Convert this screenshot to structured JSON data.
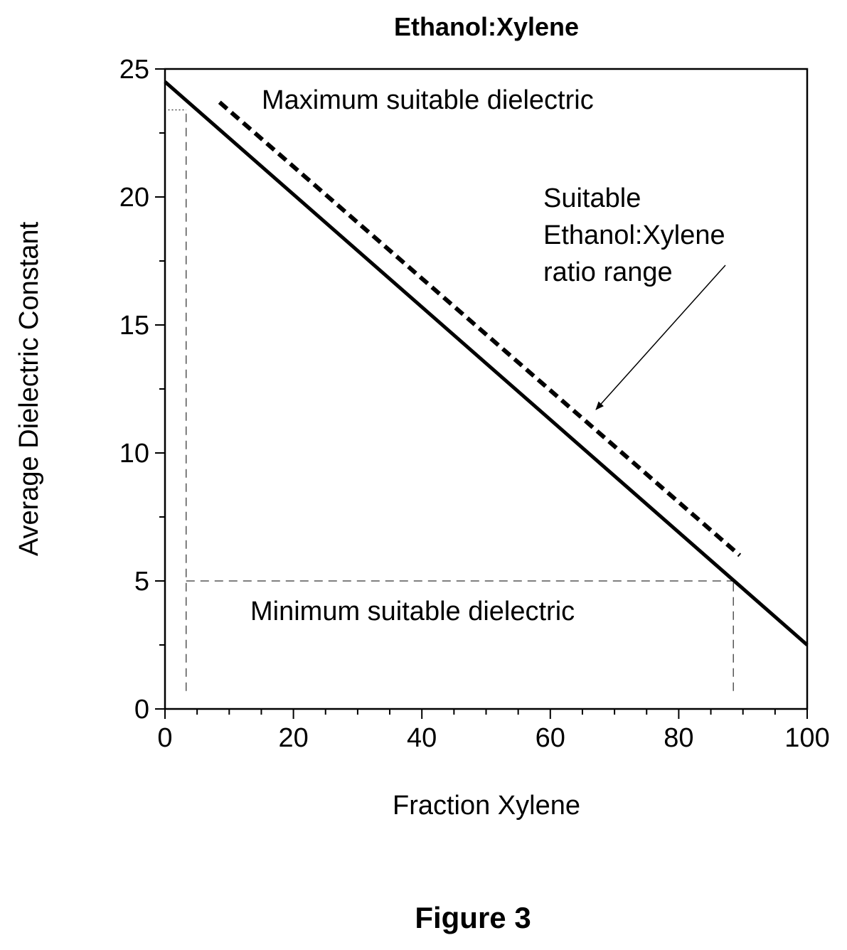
{
  "chart_data": {
    "type": "line",
    "title": "Ethanol:Xylene",
    "xlabel": "Fraction Xylene",
    "ylabel": "Average Dielectric Constant",
    "xlim": [
      0,
      100
    ],
    "ylim": [
      0,
      25
    ],
    "x_ticks": [
      0,
      20,
      40,
      60,
      80,
      100
    ],
    "y_ticks": [
      0,
      5,
      10,
      15,
      20,
      25
    ],
    "grid": false,
    "legend": "none",
    "series": [
      {
        "style": "solid",
        "color": "#000000",
        "x": [
          0,
          100
        ],
        "y": [
          24.5,
          2.5
        ]
      },
      {
        "style": "dashed",
        "color": "#000000",
        "x": [
          8.5,
          89.5
        ],
        "y": [
          23.7,
          6.0
        ]
      }
    ],
    "reference_lines": [
      {
        "type": "vertical",
        "x": 3.3,
        "y_from": 0.7,
        "y_to": 23.4,
        "style": "dashed"
      },
      {
        "type": "horizontal",
        "y": 23.4,
        "x_from": 0.5,
        "x_to": 3.3,
        "style": "dotted"
      },
      {
        "type": "horizontal",
        "y": 5,
        "x_from": 3.3,
        "x_to": 88.5,
        "style": "dashed"
      },
      {
        "type": "vertical",
        "x": 88.5,
        "y_from": 0.7,
        "y_to": 5,
        "style": "dashed"
      }
    ],
    "annotations": {
      "max": "Maximum suitable dielectric",
      "min": "Minimum suitable dielectric",
      "range_lines": [
        "Suitable",
        "Ethanol:Xylene",
        "ratio range"
      ]
    }
  },
  "caption": "Figure 3"
}
